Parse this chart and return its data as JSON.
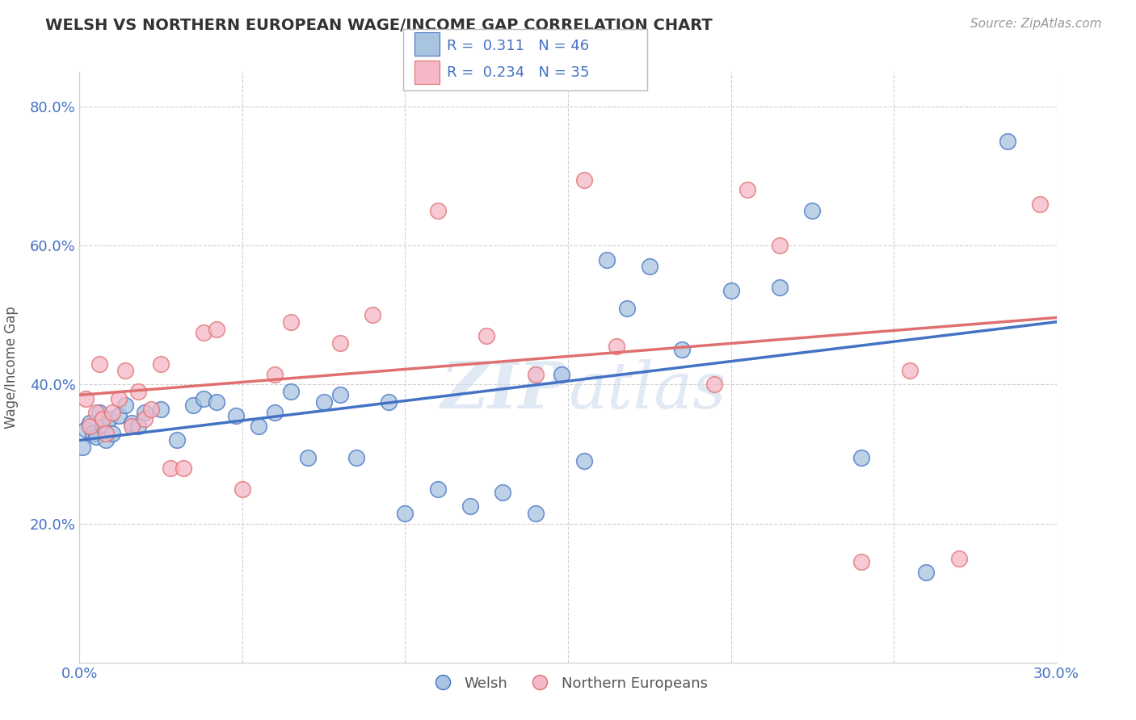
{
  "title": "WELSH VS NORTHERN EUROPEAN WAGE/INCOME GAP CORRELATION CHART",
  "source": "Source: ZipAtlas.com",
  "ylabel": "Wage/Income Gap",
  "xlim": [
    0.0,
    0.3
  ],
  "ylim": [
    0.0,
    0.85
  ],
  "x_ticks": [
    0.0,
    0.05,
    0.1,
    0.15,
    0.2,
    0.25,
    0.3
  ],
  "x_tick_labels": [
    "0.0%",
    "",
    "",
    "",
    "",
    "",
    "30.0%"
  ],
  "y_ticks": [
    0.2,
    0.4,
    0.6,
    0.8
  ],
  "y_tick_labels": [
    "20.0%",
    "40.0%",
    "60.0%",
    "80.0%"
  ],
  "welsh_color": "#a8c4e0",
  "northern_color": "#f4b8c8",
  "welsh_line_color": "#4472c4",
  "northern_line_color": "#e07070",
  "welsh_R": 0.311,
  "welsh_N": 46,
  "northern_R": 0.234,
  "northern_N": 35,
  "background_color": "#ffffff",
  "grid_color": "#d0d0d0",
  "welsh_scatter_x": [
    0.001,
    0.002,
    0.003,
    0.004,
    0.005,
    0.006,
    0.007,
    0.008,
    0.009,
    0.01,
    0.012,
    0.014,
    0.016,
    0.018,
    0.02,
    0.025,
    0.03,
    0.035,
    0.038,
    0.042,
    0.048,
    0.055,
    0.06,
    0.065,
    0.07,
    0.075,
    0.08,
    0.085,
    0.095,
    0.1,
    0.11,
    0.12,
    0.13,
    0.14,
    0.148,
    0.155,
    0.162,
    0.168,
    0.175,
    0.185,
    0.2,
    0.215,
    0.225,
    0.24,
    0.26,
    0.285
  ],
  "welsh_scatter_y": [
    0.31,
    0.335,
    0.345,
    0.33,
    0.325,
    0.36,
    0.34,
    0.32,
    0.35,
    0.33,
    0.355,
    0.37,
    0.345,
    0.34,
    0.36,
    0.365,
    0.32,
    0.37,
    0.38,
    0.375,
    0.355,
    0.34,
    0.36,
    0.39,
    0.295,
    0.375,
    0.385,
    0.295,
    0.375,
    0.215,
    0.25,
    0.225,
    0.245,
    0.215,
    0.415,
    0.29,
    0.58,
    0.51,
    0.57,
    0.45,
    0.535,
    0.54,
    0.65,
    0.295,
    0.13,
    0.75
  ],
  "northern_scatter_x": [
    0.002,
    0.003,
    0.005,
    0.006,
    0.007,
    0.008,
    0.01,
    0.012,
    0.014,
    0.016,
    0.018,
    0.02,
    0.022,
    0.025,
    0.028,
    0.032,
    0.038,
    0.042,
    0.05,
    0.06,
    0.065,
    0.08,
    0.09,
    0.11,
    0.125,
    0.14,
    0.155,
    0.165,
    0.195,
    0.205,
    0.215,
    0.24,
    0.255,
    0.27,
    0.295
  ],
  "northern_scatter_y": [
    0.38,
    0.34,
    0.36,
    0.43,
    0.35,
    0.33,
    0.36,
    0.38,
    0.42,
    0.34,
    0.39,
    0.35,
    0.365,
    0.43,
    0.28,
    0.28,
    0.475,
    0.48,
    0.25,
    0.415,
    0.49,
    0.46,
    0.5,
    0.65,
    0.47,
    0.415,
    0.695,
    0.455,
    0.4,
    0.68,
    0.6,
    0.145,
    0.42,
    0.15,
    0.66
  ]
}
